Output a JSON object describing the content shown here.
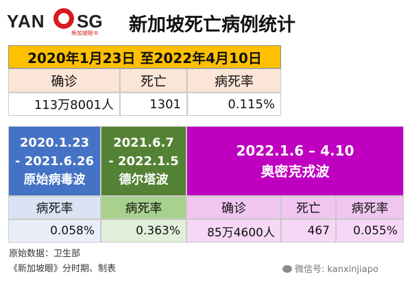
{
  "brand": {
    "left": "YAN",
    "right": "SG",
    "sub": "新加坡眼®"
  },
  "title": "新加坡死亡病例统计",
  "overall": {
    "period": "2020年1月23日 至2022年4月10日",
    "headers": [
      "确诊",
      "死亡",
      "病死率"
    ],
    "values": [
      "113万8001人",
      "1301",
      "0.115%"
    ]
  },
  "waves": [
    {
      "lines": [
        "2020.1.23",
        "- 2021.6.26",
        "原始病毒波"
      ],
      "rate_label": "病死率",
      "rate": "0.058%"
    },
    {
      "lines": [
        "2021.6.7",
        "- 2022.1.5",
        "德尔塔波"
      ],
      "rate_label": "病死率",
      "rate": "0.363%"
    },
    {
      "lines": [
        "2022.1.6 – 4.10",
        "奥密克戎波"
      ],
      "headers": [
        "确诊",
        "死亡",
        "病死率"
      ],
      "values": [
        "85万4600人",
        "467",
        "0.055%"
      ]
    }
  ],
  "colors": {
    "orange": "#ffc000",
    "blue": "#4472c4",
    "green": "#548235",
    "purple": "#c000c0"
  },
  "footer": {
    "line1": "原始数据：卫生部",
    "line2": "《新加坡眼》分时期、制表"
  },
  "watermark": "微信号: kanxinjiapo"
}
